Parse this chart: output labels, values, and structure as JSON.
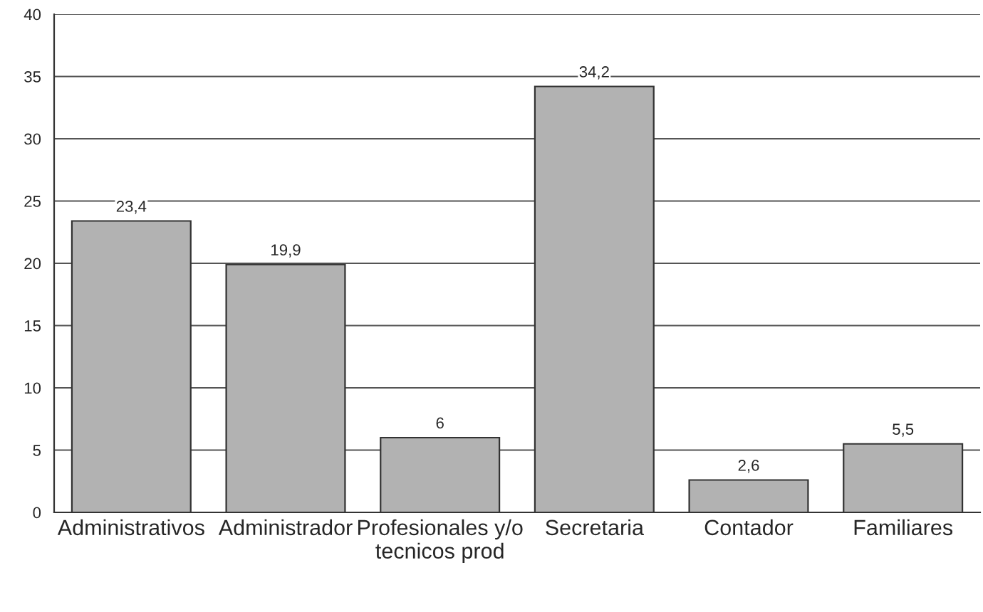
{
  "chart_data": {
    "type": "bar",
    "categories": [
      "Administrativos",
      "Administrador",
      "Profesionales y/o\ntecnicos prod",
      "Secretaria",
      "Contador",
      "Familiares"
    ],
    "values": [
      23.4,
      19.9,
      6,
      34.2,
      2.6,
      5.5
    ],
    "value_labels": [
      "23,4",
      "19,9",
      "6",
      "34,2",
      "2,6",
      "5,5"
    ],
    "color": "#b2b2b2",
    "ylim": [
      0,
      40
    ],
    "yticks": [
      0,
      5,
      10,
      15,
      20,
      25,
      30,
      35,
      40
    ],
    "grid": "y",
    "legend": false
  }
}
